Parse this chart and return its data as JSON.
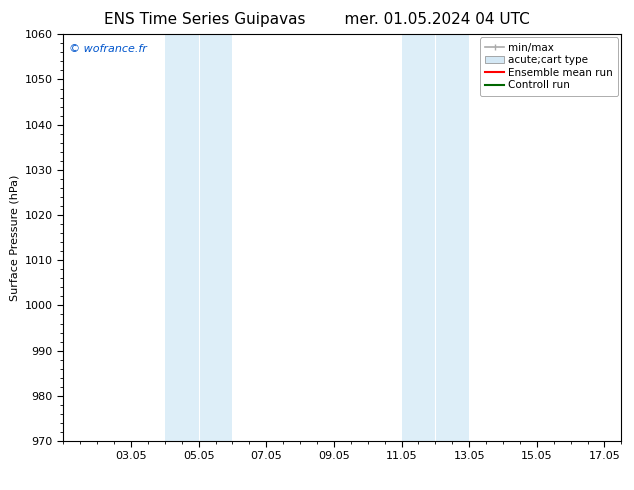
{
  "title_left": "ENS Time Series Guipavas",
  "title_right": "mer. 01.05.2024 04 UTC",
  "ylabel": "Surface Pressure (hPa)",
  "ylim": [
    970,
    1060
  ],
  "yticks": [
    970,
    980,
    990,
    1000,
    1010,
    1020,
    1030,
    1040,
    1050,
    1060
  ],
  "xlim": [
    1.0,
    17.5
  ],
  "xtick_labels": [
    "03.05",
    "05.05",
    "07.05",
    "09.05",
    "11.05",
    "13.05",
    "15.05",
    "17.05"
  ],
  "xtick_positions": [
    3,
    5,
    7,
    9,
    11,
    13,
    15,
    17
  ],
  "watermark": "© wofrance.fr",
  "watermark_color": "#0055cc",
  "background_color": "#ffffff",
  "plot_bg_color": "#ffffff",
  "shaded_regions": [
    {
      "x_start": 4.0,
      "x_end": 5.0,
      "color": "#ddeef8"
    },
    {
      "x_start": 5.0,
      "x_end": 6.0,
      "color": "#ddeef8"
    },
    {
      "x_start": 11.0,
      "x_end": 12.0,
      "color": "#ddeef8"
    },
    {
      "x_start": 12.0,
      "x_end": 13.0,
      "color": "#ddeef8"
    }
  ],
  "shaded_separators": [
    5.0,
    12.0
  ],
  "legend_items": [
    {
      "label": "min/max",
      "color": "#aaaaaa",
      "lw": 1.2,
      "type": "errorbar"
    },
    {
      "label": "acute;cart type",
      "color": "#d4e8f5",
      "lw": 6,
      "type": "band"
    },
    {
      "label": "Ensemble mean run",
      "color": "#ff0000",
      "lw": 1.5,
      "type": "line"
    },
    {
      "label": "Controll run",
      "color": "#006600",
      "lw": 1.5,
      "type": "line"
    }
  ],
  "title_fontsize": 11,
  "tick_fontsize": 8,
  "legend_fontsize": 7.5,
  "watermark_fontsize": 8,
  "ylabel_fontsize": 8
}
